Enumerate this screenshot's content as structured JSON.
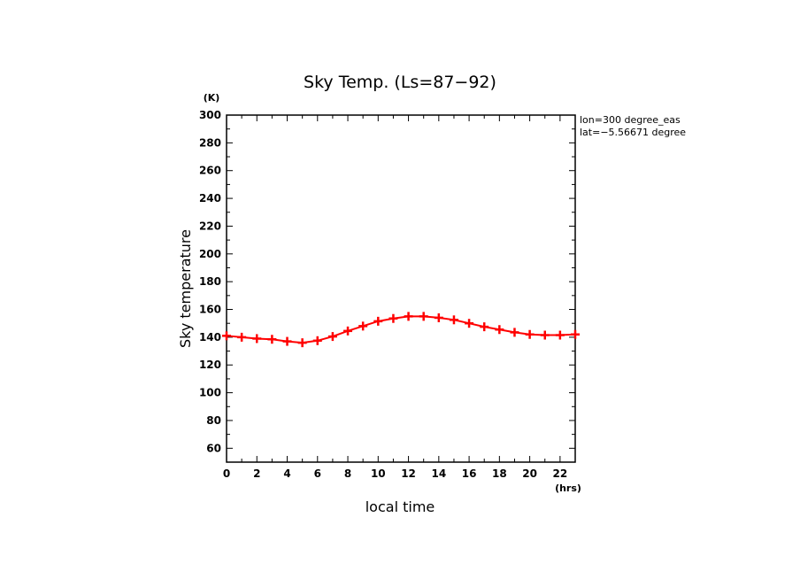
{
  "chart_data": {
    "type": "line",
    "title": "Sky Temp. (Ls=87−92)",
    "xlabel": "local time",
    "ylabel": "Sky temperature",
    "x_unit": "(hrs)",
    "y_unit": "(K)",
    "xlim": [
      0,
      23
    ],
    "ylim": [
      50,
      300
    ],
    "x_ticks": [
      0,
      2,
      4,
      6,
      8,
      10,
      12,
      14,
      16,
      18,
      20,
      22
    ],
    "y_ticks": [
      60,
      80,
      100,
      120,
      140,
      160,
      180,
      200,
      220,
      240,
      260,
      280,
      300
    ],
    "annotations": [
      "lon=300 degree_eas",
      "lat=−5.56671 degree"
    ],
    "color": "#ff0000",
    "marker": "+",
    "x": [
      0,
      1,
      2,
      3,
      4,
      5,
      6,
      7,
      8,
      9,
      10,
      11,
      12,
      13,
      14,
      15,
      16,
      17,
      18,
      19,
      20,
      21,
      22,
      23
    ],
    "y": [
      141,
      140,
      139,
      138.5,
      137,
      136,
      137.5,
      140.5,
      144.5,
      148,
      151.5,
      153.5,
      155,
      155,
      154,
      152.5,
      150,
      147.5,
      145.5,
      143.5,
      142,
      141.5,
      141.5,
      142
    ]
  }
}
